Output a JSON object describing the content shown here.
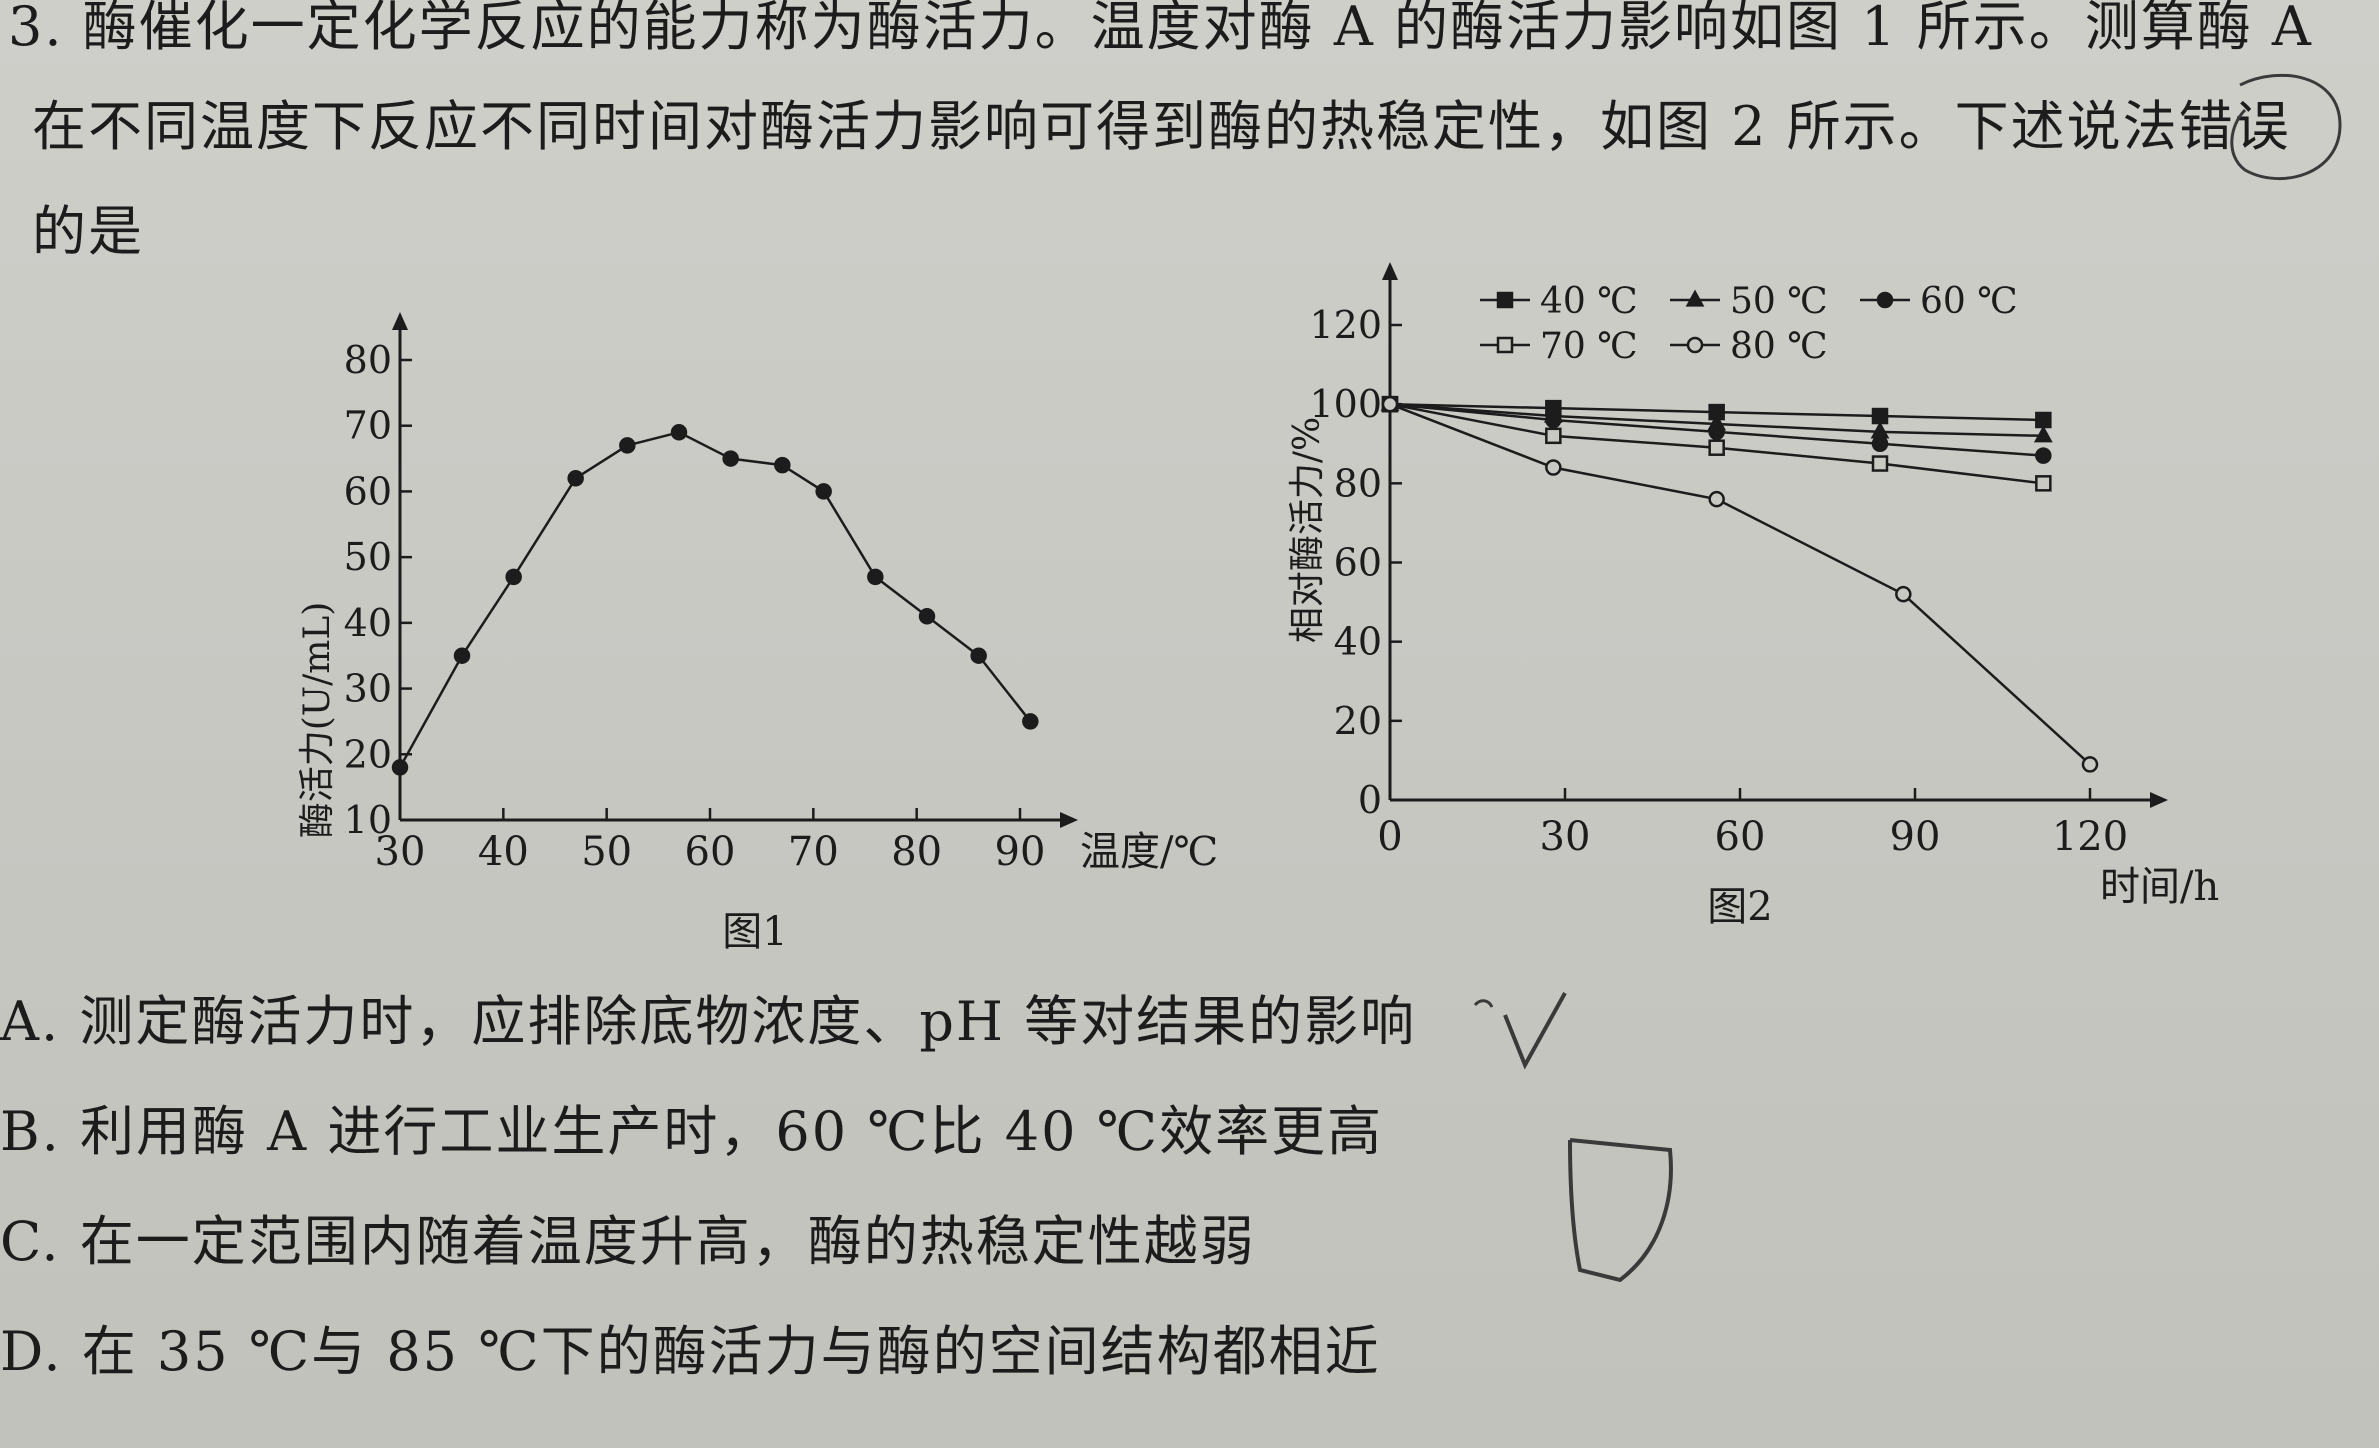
{
  "question": {
    "line1": "3. 酶催化一定化学反应的能力称为酶活力。温度对酶 A 的酶活力影响如图 1 所示。测算酶 A",
    "line2": "在不同温度下反应不同时间对酶活力影响可得到酶的热稳定性，如图 2 所示。下述说法错误",
    "line3": "的是"
  },
  "options": {
    "a": "A. 测定酶活力时，应排除底物浓度、pH 等对结果的影响",
    "b": "B. 利用酶 A 进行工业生产时，60 ℃比 40 ℃效率更高",
    "c": "C. 在一定范围内随着温度升高，酶的热稳定性越弱",
    "d": "D. 在 35 ℃与 85 ℃下的酶活力与酶的空间结构都相近"
  },
  "colors": {
    "ink": "#1c1c1c",
    "paper": "#c9c9c4",
    "pen": "#3a3a3a"
  },
  "chart_data": [
    {
      "type": "line",
      "caption": "图1",
      "xlabel": "温度/℃",
      "ylabel": "酶活力(U/mL)",
      "xlim": [
        30,
        90
      ],
      "ylim": [
        10,
        80
      ],
      "xticks": [
        "30",
        "40",
        "50",
        "60",
        "70",
        "80",
        "90"
      ],
      "yticks": [
        "10",
        "20",
        "30",
        "40",
        "50",
        "60",
        "70",
        "80"
      ],
      "series": [
        {
          "marker": "filled-circle",
          "x": [
            30,
            36,
            41,
            47,
            52,
            57,
            62,
            67,
            71,
            76,
            81,
            86,
            91
          ],
          "y": [
            18,
            35,
            47,
            62,
            67,
            69,
            65,
            64,
            60,
            47,
            41,
            35,
            25
          ]
        }
      ]
    },
    {
      "type": "line",
      "caption": "图2",
      "xlabel": "时间/h",
      "ylabel": "相对酶活力/%",
      "xlim": [
        0,
        120
      ],
      "ylim": [
        0,
        120
      ],
      "xticks": [
        "0",
        "30",
        "60",
        "90",
        "120"
      ],
      "yticks": [
        "0",
        "20",
        "40",
        "60",
        "80",
        "100",
        "120"
      ],
      "legend_position": "top",
      "series": [
        {
          "name": "40 ℃",
          "marker": "filled-square",
          "x": [
            0,
            28,
            56,
            84,
            112
          ],
          "y": [
            100,
            99,
            98,
            97,
            96
          ]
        },
        {
          "name": "50 ℃",
          "marker": "filled-triangle",
          "x": [
            0,
            28,
            56,
            84,
            112
          ],
          "y": [
            100,
            97,
            95,
            93,
            92
          ]
        },
        {
          "name": "60 ℃",
          "marker": "filled-circle",
          "x": [
            0,
            28,
            56,
            84,
            112
          ],
          "y": [
            100,
            96,
            93,
            90,
            87
          ]
        },
        {
          "name": "70 ℃",
          "marker": "open-square",
          "x": [
            0,
            28,
            56,
            84,
            112
          ],
          "y": [
            100,
            92,
            89,
            85,
            80
          ]
        },
        {
          "name": "80 ℃",
          "marker": "open-circle",
          "x": [
            0,
            28,
            56,
            88,
            120
          ],
          "y": [
            100,
            84,
            76,
            52,
            9
          ]
        }
      ]
    }
  ]
}
